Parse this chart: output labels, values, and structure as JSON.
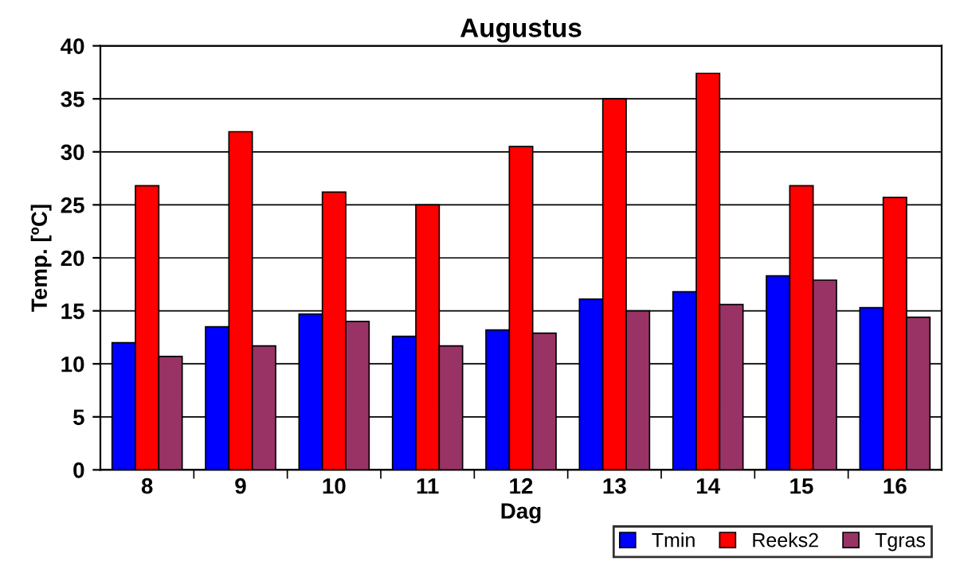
{
  "chart_data": {
    "type": "bar",
    "title": "Augustus",
    "xlabel": "Dag",
    "ylabel": "Temp. [ºC]",
    "categories": [
      "8",
      "9",
      "10",
      "11",
      "12",
      "13",
      "14",
      "15",
      "16"
    ],
    "series": [
      {
        "name": "Tmin",
        "color": "#0000ff",
        "values": [
          12.0,
          13.5,
          14.7,
          12.6,
          13.2,
          16.1,
          16.8,
          18.3,
          15.3
        ]
      },
      {
        "name": "Reeks2",
        "color": "#ff0000",
        "values": [
          26.8,
          31.9,
          26.2,
          25.0,
          30.5,
          35.0,
          37.4,
          26.8,
          25.7
        ]
      },
      {
        "name": "Tgras",
        "color": "#993366",
        "values": [
          10.7,
          11.7,
          14.0,
          11.7,
          12.9,
          15.0,
          15.6,
          17.9,
          14.4
        ]
      }
    ],
    "ylim": [
      0,
      40
    ],
    "yticks": [
      0,
      5,
      10,
      15,
      20,
      25,
      30,
      35,
      40
    ],
    "grid": "y",
    "legend": "bottom right"
  }
}
